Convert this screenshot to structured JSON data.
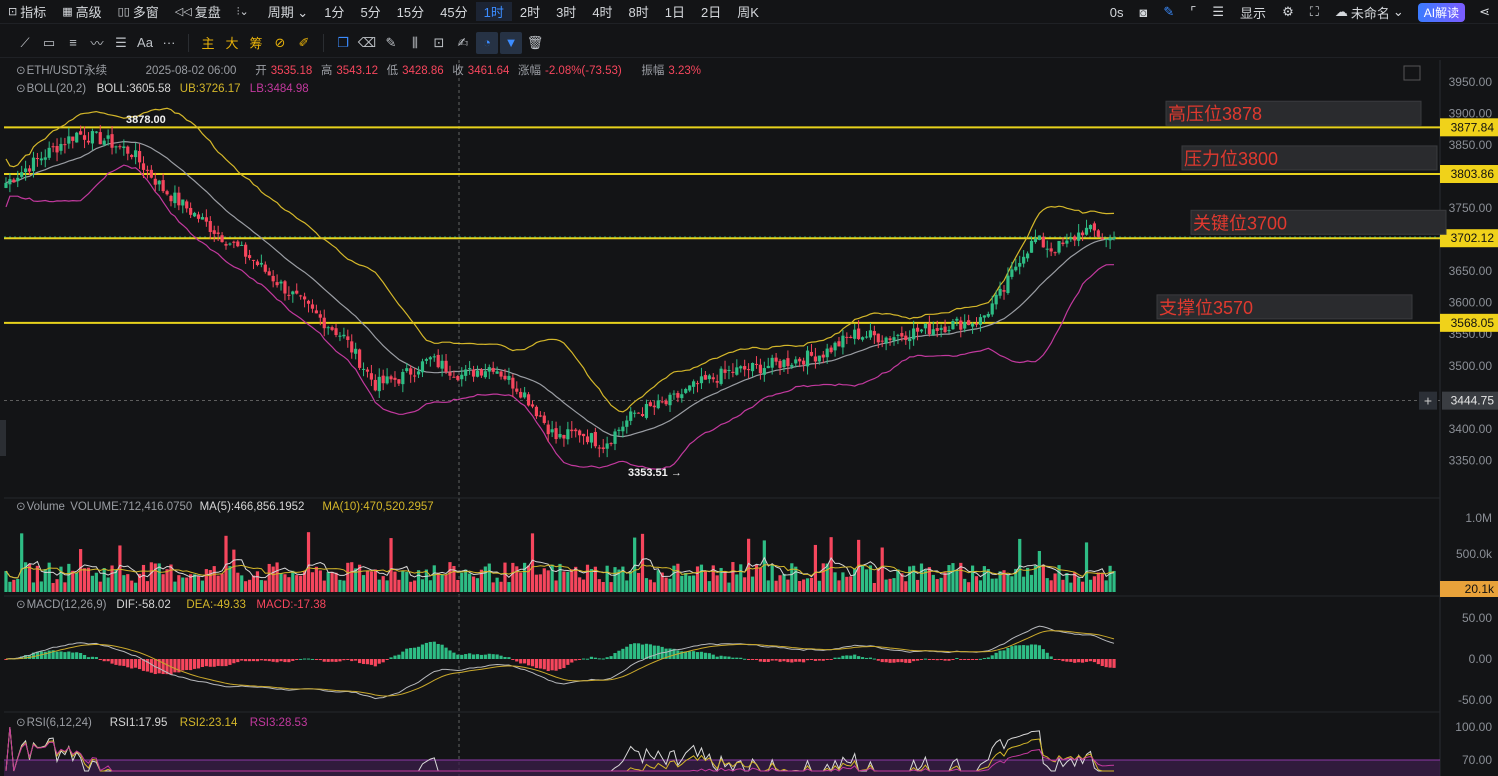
{
  "topbar": {
    "items": [
      {
        "label": "指标",
        "icon": "indicator-icon"
      },
      {
        "label": "高级",
        "icon": "calendar-icon"
      },
      {
        "label": "多窗",
        "icon": "grid-icon"
      },
      {
        "label": "复盘",
        "icon": "rewind-icon"
      },
      {
        "label": "",
        "icon": "candle-type-icon"
      },
      {
        "label": "周期 ⌄",
        "icon": ""
      },
      {
        "label": "1分"
      },
      {
        "label": "5分"
      },
      {
        "label": "15分"
      },
      {
        "label": "45分"
      },
      {
        "label": "1时",
        "active": true
      },
      {
        "label": "2时"
      },
      {
        "label": "3时"
      },
      {
        "label": "4时"
      },
      {
        "label": "8时"
      },
      {
        "label": "1日"
      },
      {
        "label": "2日"
      },
      {
        "label": "周K"
      }
    ],
    "countdown": "0s",
    "display_label": "显示",
    "layout_name": "未命名",
    "ai_label": "AI解读"
  },
  "toolbar": {
    "chips": [
      "主",
      "大",
      "筹"
    ],
    "text_tool": "Aa",
    "more": "···"
  },
  "legend": {
    "symbol": "ETH/USDT永续",
    "datetime": "2025-08-02 06:00",
    "open_label": "开",
    "open": "3535.18",
    "high_label": "高",
    "high": "3543.12",
    "low_label": "低",
    "low": "3428.86",
    "close_label": "收",
    "close": "3461.64",
    "change_label": "涨幅",
    "change": "-2.08%(-73.53)",
    "amp_label": "振幅",
    "amp": "3.23%",
    "boll_name": "BOLL(20,2)",
    "boll": "BOLL:3605.58",
    "ub": "UB:3726.17",
    "lb": "LB:3484.98",
    "vol_name": "Volume",
    "vol": "VOLUME:712,416.0750",
    "vol_ma5": "MA(5):466,856.1952",
    "vol_ma10": "MA(10):470,520.2957",
    "macd_name": "MACD(12,26,9)",
    "dif": "DIF:-58.02",
    "dea": "DEA:-49.33",
    "macd": "MACD:-17.38",
    "rsi_name": "RSI(6,12,24)",
    "rsi1": "RSI1:17.95",
    "rsi2": "RSI2:23.14",
    "rsi3": "RSI3:28.53"
  },
  "colors": {
    "up": "#2ebd85",
    "down": "#f6465d",
    "boll_mid": "#9a9da3",
    "ub": "#d4b72a",
    "lb": "#c2399e",
    "hline": "#e8d21c",
    "macd_dif": "#b7b9bd",
    "macd_dea": "#c9a82b",
    "rsi1": "#d9d9d9",
    "rsi2": "#d4b72a",
    "rsi3": "#c2399e"
  },
  "chart_data": {
    "type": "candlestick",
    "price_axis": {
      "ylim": [
        3300,
        3975
      ],
      "ticks": [
        3950,
        3900,
        3850,
        3800,
        3750,
        3700,
        3650,
        3600,
        3550,
        3500,
        3450,
        3400,
        3350
      ]
    },
    "price_tags": [
      {
        "value": 3877.84,
        "label": "3877.84"
      },
      {
        "value": 3803.86,
        "label": "3803.86"
      },
      {
        "value": 3702.12,
        "label": "3702.12"
      },
      {
        "value": 3568.05,
        "label": "3568.05"
      },
      {
        "value": 3444.75,
        "label": "3444.75",
        "type": "crosshair"
      }
    ],
    "annotations": [
      {
        "text": "高压位3878",
        "price": 3878
      },
      {
        "text": "压力位3800",
        "price": 3804
      },
      {
        "text": "关键位3700",
        "price": 3702
      },
      {
        "text": "支撑位3570",
        "price": 3568
      }
    ],
    "high_marker": {
      "label": "3878.00",
      "value": 3878.0
    },
    "low_marker": {
      "label": "3353.51",
      "value": 3353.51
    },
    "volume_axis": {
      "ticks": [
        "1.0M",
        "500.0k"
      ],
      "tag": "20.1k"
    },
    "macd_axis": {
      "ticks": [
        "50.00",
        "0.00",
        "-50.00"
      ]
    },
    "rsi_axis": {
      "ticks": [
        "100.00",
        "70.00"
      ]
    },
    "anchors": [
      [
        0,
        3790
      ],
      [
        10,
        3835
      ],
      [
        18,
        3868
      ],
      [
        25,
        3858
      ],
      [
        32,
        3838
      ],
      [
        40,
        3780
      ],
      [
        48,
        3740
      ],
      [
        55,
        3705
      ],
      [
        62,
        3672
      ],
      [
        70,
        3628
      ],
      [
        78,
        3585
      ],
      [
        86,
        3545
      ],
      [
        94,
        3470
      ],
      [
        100,
        3480
      ],
      [
        108,
        3510
      ],
      [
        116,
        3485
      ],
      [
        124,
        3500
      ],
      [
        132,
        3455
      ],
      [
        140,
        3385
      ],
      [
        146,
        3395
      ],
      [
        152,
        3375
      ],
      [
        160,
        3425
      ],
      [
        168,
        3440
      ],
      [
        176,
        3470
      ],
      [
        184,
        3490
      ],
      [
        192,
        3498
      ],
      [
        200,
        3508
      ],
      [
        208,
        3520
      ],
      [
        216,
        3550
      ],
      [
        224,
        3545
      ],
      [
        232,
        3555
      ],
      [
        240,
        3565
      ],
      [
        248,
        3572
      ],
      [
        254,
        3620
      ],
      [
        258,
        3672
      ],
      [
        262,
        3700
      ],
      [
        266,
        3685
      ],
      [
        270,
        3692
      ],
      [
        274,
        3715
      ],
      [
        277,
        3712
      ],
      [
        280,
        3700
      ],
      [
        282,
        3703
      ]
    ]
  }
}
